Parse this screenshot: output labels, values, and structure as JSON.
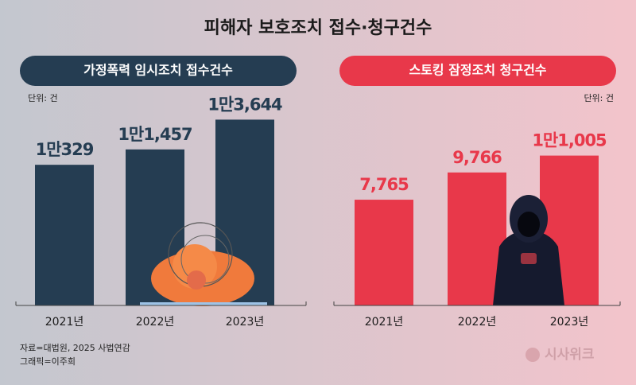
{
  "title": "피해자 보호조치 접수·청구건수",
  "chart_data": [
    {
      "type": "bar",
      "title": "가정폭력 임시조치 접수건수",
      "unit": "단위: 건",
      "categories": [
        "2021년",
        "2022년",
        "2023년"
      ],
      "values": [
        10329,
        11457,
        13644
      ],
      "value_labels": [
        "1만329",
        "1만1,457",
        "1만3,644"
      ],
      "color": "#253d52"
    },
    {
      "type": "bar",
      "title": "스토킹 잠정조치 청구건수",
      "unit": "단위: 건",
      "categories": [
        "2021년",
        "2022년",
        "2023년"
      ],
      "values": [
        7765,
        9766,
        11005
      ],
      "value_labels": [
        "7,765",
        "9,766",
        "1만1,005"
      ],
      "color": "#e8384a"
    }
  ],
  "source": "자료=대법원, 2025 사법연감",
  "credit": "그래픽=이주희",
  "logo": "시사위크"
}
